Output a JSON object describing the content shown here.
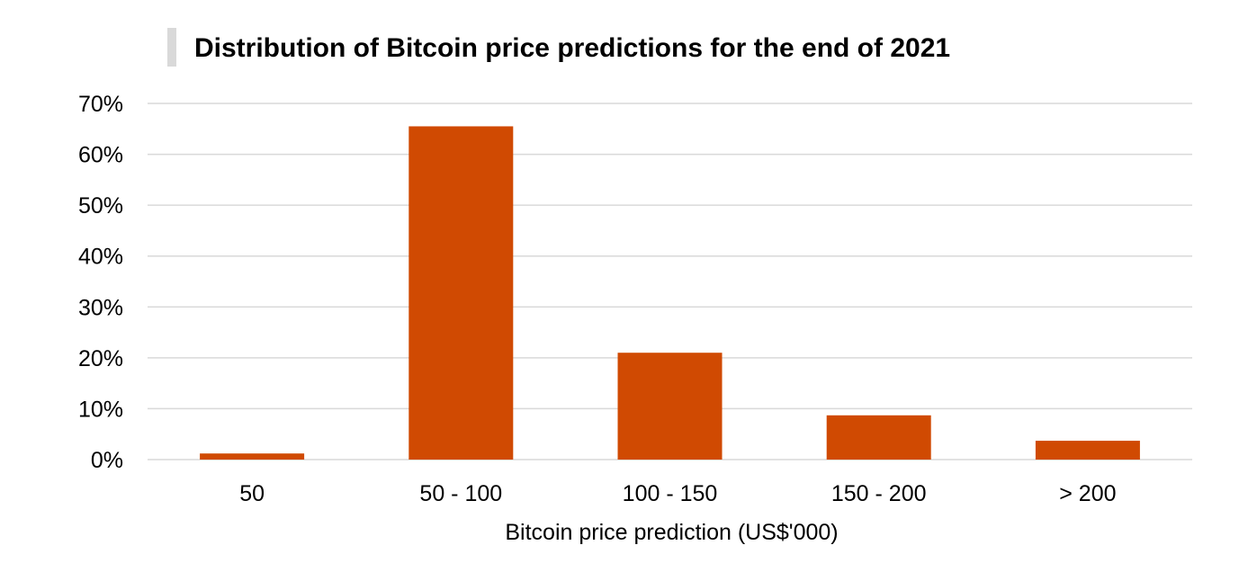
{
  "chart_data": {
    "type": "bar",
    "title": "Distribution of Bitcoin price predictions for the end of 2021",
    "xlabel": "Bitcoin price prediction (US$'000)",
    "ylabel": "",
    "categories": [
      "50",
      "50 - 100",
      "100 - 150",
      "150 - 200",
      "> 200"
    ],
    "values": [
      1.2,
      65.5,
      21.0,
      8.7,
      3.7
    ],
    "value_unit": "%",
    "ylim": [
      0,
      70
    ],
    "yticks": [
      0,
      10,
      20,
      30,
      40,
      50,
      60,
      70
    ],
    "ytick_labels": [
      "0%",
      "10%",
      "20%",
      "30%",
      "40%",
      "50%",
      "60%",
      "70%"
    ],
    "grid": true,
    "legend": "none",
    "colors": {
      "bar": "#d04a02",
      "grid": "#d9d9d9",
      "title_marker": "#d9d9d9"
    }
  }
}
